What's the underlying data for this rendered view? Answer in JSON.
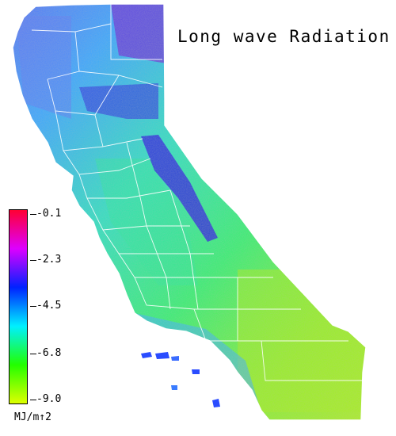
{
  "title": "Long wave Radiation",
  "legend": {
    "labels": [
      "-0.1",
      "-2.3",
      "-4.5",
      "-6.8",
      "-9.0"
    ],
    "values": [
      -0.1,
      -2.3,
      -4.5,
      -6.8,
      -9.0
    ],
    "colors": [
      "#ff0033",
      "#dd00ff",
      "#0022ff",
      "#00f0ff",
      "#22ff00",
      "#ddff00"
    ],
    "unit": "MJ/m↑2"
  },
  "colors": {
    "ocean": "#ffffff",
    "boundaries": "#ffffff",
    "coast_band": "#4a6cff",
    "north_coast": "#5a7cf6",
    "central_valley": "#2ae89a",
    "southeast_desert": "#a6f01c",
    "sierra_high": "#2a1ee0",
    "northeast_high": "#6a2ed8"
  }
}
